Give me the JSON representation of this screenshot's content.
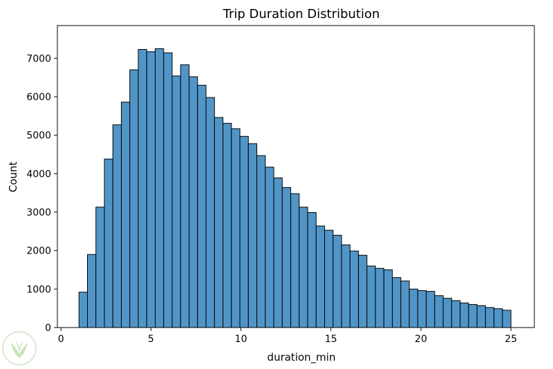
{
  "chart_data": {
    "type": "histogram",
    "title": "Trip Duration Distribution",
    "xlabel": "duration_min",
    "ylabel": "Count",
    "xlim": [
      -0.2,
      26.3
    ],
    "ylim": [
      0,
      7850
    ],
    "x_ticks": [
      0,
      5,
      10,
      15,
      20,
      25
    ],
    "y_ticks": [
      0,
      1000,
      2000,
      3000,
      4000,
      5000,
      6000,
      7000
    ],
    "bin_start": 1,
    "bin_end": 25,
    "bar_color": "#5195c7",
    "grid": false,
    "counts": [
      920,
      1900,
      3130,
      4380,
      5270,
      5860,
      6700,
      7230,
      7170,
      7250,
      7140,
      6540,
      6830,
      6520,
      6300,
      5980,
      5460,
      5310,
      5170,
      4970,
      4780,
      4470,
      4170,
      3890,
      3640,
      3480,
      3130,
      2990,
      2640,
      2530,
      2400,
      2150,
      1990,
      1880,
      1600,
      1540,
      1500,
      1300,
      1210,
      1000,
      960,
      940,
      830,
      760,
      700,
      640,
      600,
      570,
      520,
      490,
      450
    ]
  },
  "watermark": {
    "name": "leaf-logo",
    "color": "#8cc86e"
  }
}
